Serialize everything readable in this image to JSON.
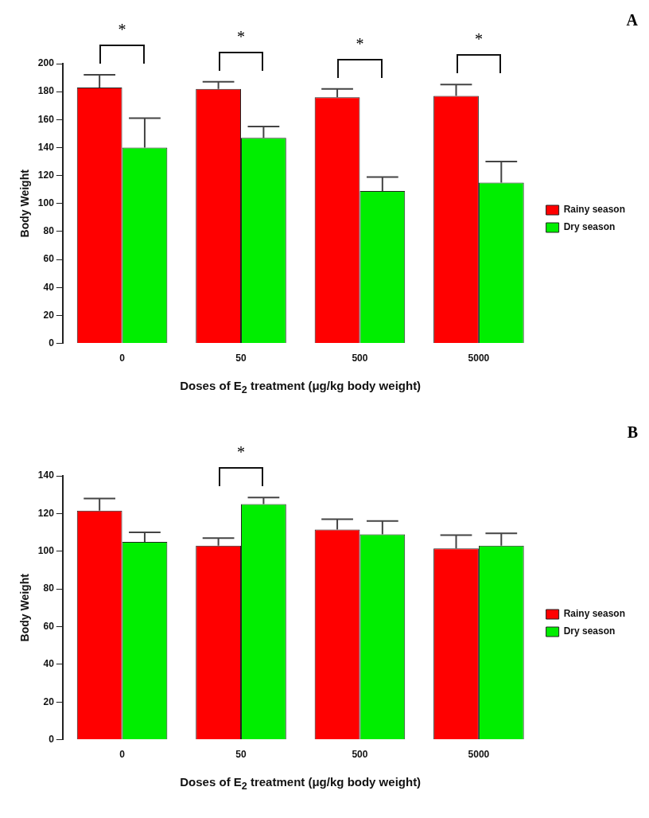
{
  "chart_data": [
    {
      "type": "bar",
      "xlabel": "Doses of E$_{2}$ treatment (μg/kg body weight)",
      "ylabel": "Body Weight",
      "categories": [
        "0",
        "50",
        "500",
        "5000"
      ],
      "series": [
        {
          "name": "Rainy season",
          "color": "#ff0000",
          "values": [
            183,
            182,
            176,
            177
          ],
          "errors": [
            9,
            5,
            6,
            8
          ]
        },
        {
          "name": "Dry season",
          "color": "#00ee00",
          "values": [
            140,
            147,
            109,
            115
          ],
          "errors": [
            21,
            8,
            10,
            15
          ]
        }
      ],
      "ylim": [
        0,
        200
      ],
      "yticks": [
        0,
        20,
        40,
        60,
        80,
        100,
        120,
        140,
        160,
        180,
        200
      ],
      "legend": "right",
      "annotations": [
        "A",
        "*",
        "*",
        "*",
        "*"
      ]
    },
    {
      "type": "bar",
      "xlabel": "Doses of E$_{2}$ treatment (μg/kg body weight)",
      "ylabel": "Body Weight",
      "categories": [
        "0",
        "50",
        "500",
        "5000"
      ],
      "series": [
        {
          "name": "Rainy season",
          "color": "#ff0000",
          "values": [
            121.5,
            103,
            111.5,
            101.5
          ],
          "errors": [
            6.5,
            4,
            5.5,
            7
          ]
        },
        {
          "name": "Dry season",
          "color": "#00ee00",
          "values": [
            105,
            125,
            109,
            103
          ],
          "errors": [
            5,
            3.5,
            7,
            6.5
          ]
        }
      ],
      "ylim": [
        0,
        140
      ],
      "yticks": [
        0,
        20,
        40,
        60,
        80,
        100,
        120,
        140
      ],
      "legend": "right",
      "annotations": [
        "B",
        "*"
      ]
    }
  ]
}
